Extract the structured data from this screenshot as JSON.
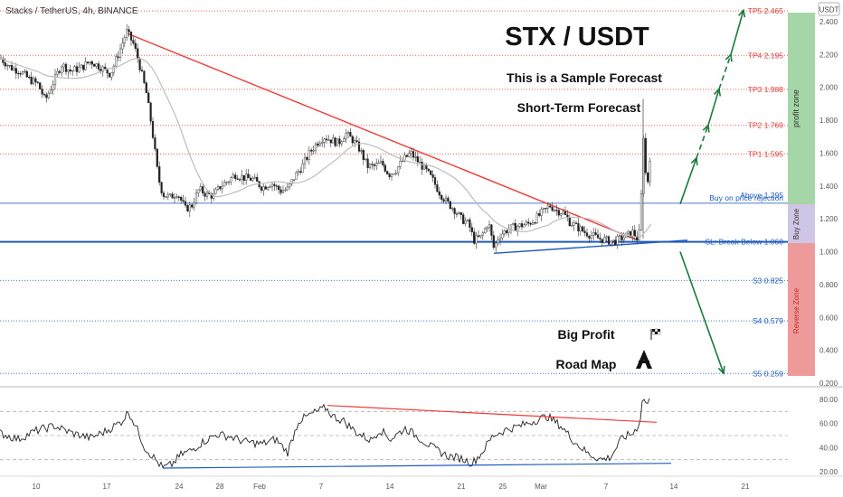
{
  "header": {
    "symbol_line": "Stacks / TetherUS, 4h, BINANCE",
    "currency": "USDT"
  },
  "overlay": {
    "title": "STX / USDT",
    "subtitle": "This is a Sample Forecast",
    "term": "Short-Term Forecast",
    "brand_line1": "Big Profit",
    "brand_line2": "Road Map"
  },
  "zones": {
    "profit": "profit zone",
    "buy": "Buy Zone",
    "reverse": "Reverse Zone"
  },
  "levels": [
    {
      "id": "tp5",
      "label": "TP5 2.465",
      "value": 2.465,
      "color": "#e53935"
    },
    {
      "id": "tp4",
      "label": "TP4 2.195",
      "value": 2.195,
      "color": "#e53935"
    },
    {
      "id": "tp3",
      "label": "TP3 1.988",
      "value": 1.988,
      "color": "#e53935"
    },
    {
      "id": "tp2",
      "label": "TP2 1.769",
      "value": 1.769,
      "color": "#e53935"
    },
    {
      "id": "tp1",
      "label": "TP1 1.595",
      "value": 1.595,
      "color": "#e53935"
    },
    {
      "id": "buy",
      "label": "Buy on price rejection",
      "value": 1.295,
      "color": "#1e5bbf"
    },
    {
      "id": "above",
      "label": "Above 1.295",
      "value": 1.25,
      "color": "#1e5bbf"
    },
    {
      "id": "sl",
      "label": "SL: Break Below 1.060",
      "value": 1.06,
      "color": "#1e5bbf"
    },
    {
      "id": "s3",
      "label": "S3 0.825",
      "value": 0.825,
      "color": "#1e5bbf"
    },
    {
      "id": "s4",
      "label": "S4 0.579",
      "value": 0.579,
      "color": "#1e5bbf"
    },
    {
      "id": "s5",
      "label": "S5 0.259",
      "value": 0.259,
      "color": "#1e5bbf"
    }
  ],
  "price_axis": [
    "2.400",
    "2.200",
    "2.000",
    "1.800",
    "1.600",
    "1.400",
    "1.200",
    "1.000",
    "0.800",
    "0.600",
    "0.400",
    "0.200"
  ],
  "rsi_axis": [
    "80.00",
    "60.00",
    "40.00",
    "20.00"
  ],
  "time_axis": [
    "10",
    "17",
    "24",
    "28",
    "Feb",
    "7",
    "14",
    "21",
    "25",
    "Mar",
    "7",
    "14",
    "21"
  ],
  "chart_data": {
    "type": "candlestick",
    "symbol": "Stacks / TetherUS",
    "interval": "4h",
    "exchange": "BINANCE",
    "y_range": [
      0.2,
      2.55
    ],
    "close_path": [
      [
        0,
        2.18
      ],
      [
        12,
        2.12
      ],
      [
        22,
        2.1
      ],
      [
        32,
        2.05
      ],
      [
        42,
        2.02
      ],
      [
        50,
        1.92
      ],
      [
        58,
        2.02
      ],
      [
        68,
        2.14
      ],
      [
        78,
        2.1
      ],
      [
        90,
        2.12
      ],
      [
        100,
        2.16
      ],
      [
        112,
        2.12
      ],
      [
        122,
        2.08
      ],
      [
        132,
        2.22
      ],
      [
        140,
        2.34
      ],
      [
        148,
        2.26
      ],
      [
        155,
        2.12
      ],
      [
        162,
        1.96
      ],
      [
        168,
        1.75
      ],
      [
        175,
        1.45
      ],
      [
        180,
        1.35
      ],
      [
        188,
        1.33
      ],
      [
        196,
        1.36
      ],
      [
        205,
        1.26
      ],
      [
        212,
        1.28
      ],
      [
        220,
        1.38
      ],
      [
        228,
        1.35
      ],
      [
        236,
        1.34
      ],
      [
        244,
        1.4
      ],
      [
        252,
        1.43
      ],
      [
        260,
        1.47
      ],
      [
        270,
        1.45
      ],
      [
        280,
        1.44
      ],
      [
        290,
        1.39
      ],
      [
        300,
        1.42
      ],
      [
        310,
        1.37
      ],
      [
        318,
        1.38
      ],
      [
        326,
        1.46
      ],
      [
        334,
        1.52
      ],
      [
        342,
        1.6
      ],
      [
        350,
        1.66
      ],
      [
        358,
        1.7
      ],
      [
        366,
        1.68
      ],
      [
        374,
        1.66
      ],
      [
        382,
        1.72
      ],
      [
        390,
        1.68
      ],
      [
        398,
        1.62
      ],
      [
        406,
        1.52
      ],
      [
        414,
        1.52
      ],
      [
        422,
        1.54
      ],
      [
        430,
        1.47
      ],
      [
        438,
        1.5
      ],
      [
        446,
        1.56
      ],
      [
        454,
        1.6
      ],
      [
        462,
        1.55
      ],
      [
        470,
        1.5
      ],
      [
        478,
        1.44
      ],
      [
        486,
        1.36
      ],
      [
        494,
        1.3
      ],
      [
        502,
        1.26
      ],
      [
        510,
        1.2
      ],
      [
        518,
        1.17
      ],
      [
        524,
        1.07
      ],
      [
        532,
        1.09
      ],
      [
        540,
        1.18
      ],
      [
        546,
        1.02
      ],
      [
        552,
        1.1
      ],
      [
        560,
        1.13
      ],
      [
        568,
        1.15
      ],
      [
        576,
        1.16
      ],
      [
        584,
        1.17
      ],
      [
        592,
        1.2
      ],
      [
        600,
        1.24
      ],
      [
        608,
        1.28
      ],
      [
        616,
        1.25
      ],
      [
        622,
        1.24
      ],
      [
        630,
        1.18
      ],
      [
        638,
        1.15
      ],
      [
        646,
        1.12
      ],
      [
        654,
        1.1
      ],
      [
        662,
        1.08
      ],
      [
        670,
        1.07
      ],
      [
        678,
        1.06
      ],
      [
        686,
        1.08
      ],
      [
        694,
        1.1
      ],
      [
        700,
        1.12
      ],
      [
        704,
        1.08
      ],
      [
        708,
        1.13
      ],
      [
        711,
        1.76
      ],
      [
        713,
        1.5
      ],
      [
        716,
        1.42
      ],
      [
        719,
        1.6
      ]
    ],
    "trendlines": [
      {
        "name": "resistance",
        "color": "#f03a3a",
        "points": [
          [
            140,
            2.33
          ],
          [
            705,
            1.07
          ]
        ]
      },
      {
        "name": "support",
        "color": "#1e5bbf",
        "points": [
          [
            546,
            0.99
          ],
          [
            760,
            1.07
          ]
        ]
      }
    ],
    "forecast_up": [
      [
        752,
        1.29
      ],
      [
        770,
        1.57
      ],
      [
        783,
        1.77
      ],
      [
        795,
        1.99
      ],
      [
        808,
        2.2
      ],
      [
        822,
        2.47
      ]
    ],
    "forecast_down": [
      [
        752,
        1.0
      ],
      [
        800,
        0.26
      ]
    ],
    "rsi": {
      "y_range": [
        20,
        90
      ],
      "points": [
        [
          0,
          52
        ],
        [
          20,
          47
        ],
        [
          40,
          54
        ],
        [
          60,
          58
        ],
        [
          80,
          52
        ],
        [
          100,
          48
        ],
        [
          118,
          54
        ],
        [
          135,
          62
        ],
        [
          142,
          70
        ],
        [
          150,
          58
        ],
        [
          160,
          40
        ],
        [
          172,
          30
        ],
        [
          180,
          23
        ],
        [
          190,
          26
        ],
        [
          200,
          34
        ],
        [
          212,
          38
        ],
        [
          225,
          45
        ],
        [
          240,
          51
        ],
        [
          255,
          49
        ],
        [
          270,
          45
        ],
        [
          290,
          43
        ],
        [
          305,
          47
        ],
        [
          318,
          36
        ],
        [
          330,
          62
        ],
        [
          345,
          68
        ],
        [
          360,
          73
        ],
        [
          368,
          66
        ],
        [
          380,
          62
        ],
        [
          395,
          52
        ],
        [
          410,
          46
        ],
        [
          420,
          55
        ],
        [
          432,
          47
        ],
        [
          448,
          56
        ],
        [
          460,
          50
        ],
        [
          478,
          40
        ],
        [
          495,
          33
        ],
        [
          510,
          31
        ],
        [
          522,
          27
        ],
        [
          532,
          35
        ],
        [
          545,
          50
        ],
        [
          560,
          55
        ],
        [
          575,
          58
        ],
        [
          590,
          62
        ],
        [
          605,
          66
        ],
        [
          620,
          58
        ],
        [
          635,
          45
        ],
        [
          650,
          35
        ],
        [
          665,
          30
        ],
        [
          675,
          32
        ],
        [
          688,
          48
        ],
        [
          700,
          52
        ],
        [
          707,
          60
        ],
        [
          711,
          83
        ],
        [
          715,
          75
        ],
        [
          719,
          80
        ]
      ],
      "trendlines": [
        {
          "name": "rsi-resistance",
          "color": "#f03a3a",
          "points": [
            [
              362,
              75
            ],
            [
              726,
              61
            ]
          ]
        },
        {
          "name": "rsi-support",
          "color": "#1e5bbf",
          "points": [
            [
              180,
              23
            ],
            [
              742,
              27
            ]
          ]
        }
      ],
      "bands": [
        70,
        50,
        30
      ]
    }
  }
}
